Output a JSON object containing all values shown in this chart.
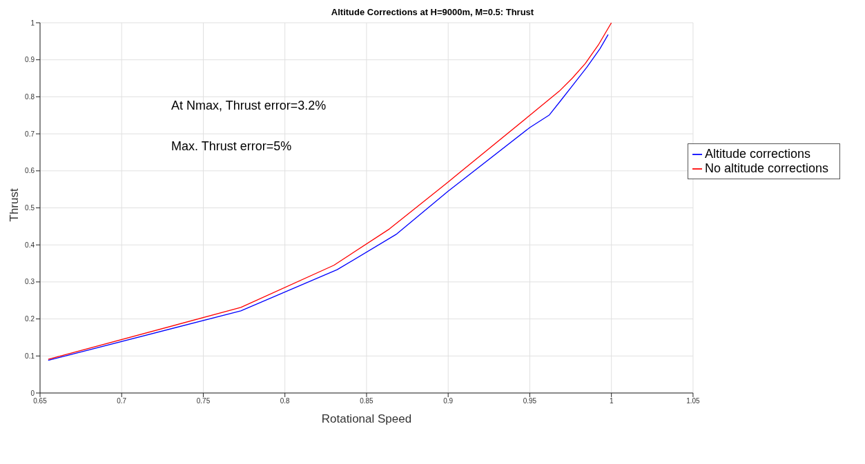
{
  "chart_data": {
    "type": "line",
    "title": "Altitude Corrections at H=9000m,  M=0.5: Thrust",
    "xlabel": "Rotational Speed",
    "ylabel": "Thrust",
    "annotations": [
      "At  Nmax, Thrust error=3.2%",
      "Max. Thrust error=5%"
    ],
    "series": [
      {
        "name": "Altitude corrections",
        "color": "#0000ff",
        "x": [
          0.655,
          0.773,
          0.832,
          0.868,
          0.9,
          0.95,
          0.962,
          0.969,
          0.977,
          0.985,
          0.993,
          0.998
        ],
        "values": [
          0.088,
          0.222,
          0.333,
          0.428,
          0.545,
          0.717,
          0.751,
          0.79,
          0.835,
          0.88,
          0.93,
          0.968
        ]
      },
      {
        "name": "No altitude corrections",
        "color": "#ff0000",
        "x": [
          0.655,
          0.773,
          0.83,
          0.864,
          0.9,
          0.95,
          0.968,
          0.976,
          0.984,
          0.992,
          1.0
        ],
        "values": [
          0.091,
          0.231,
          0.345,
          0.443,
          0.57,
          0.75,
          0.815,
          0.85,
          0.89,
          0.94,
          1.0
        ]
      }
    ],
    "xlim": [
      0.65,
      1.05
    ],
    "xticks": [
      0.65,
      0.7,
      0.75,
      0.8,
      0.85,
      0.9,
      0.95,
      1,
      1.05
    ],
    "ylim": [
      0,
      1
    ],
    "yticks": [
      0,
      0.1,
      0.2,
      0.3,
      0.4,
      0.5,
      0.6,
      0.7,
      0.8,
      0.9,
      1
    ],
    "grid": true,
    "legend": "right",
    "marker": "none",
    "line_style": "solid"
  }
}
